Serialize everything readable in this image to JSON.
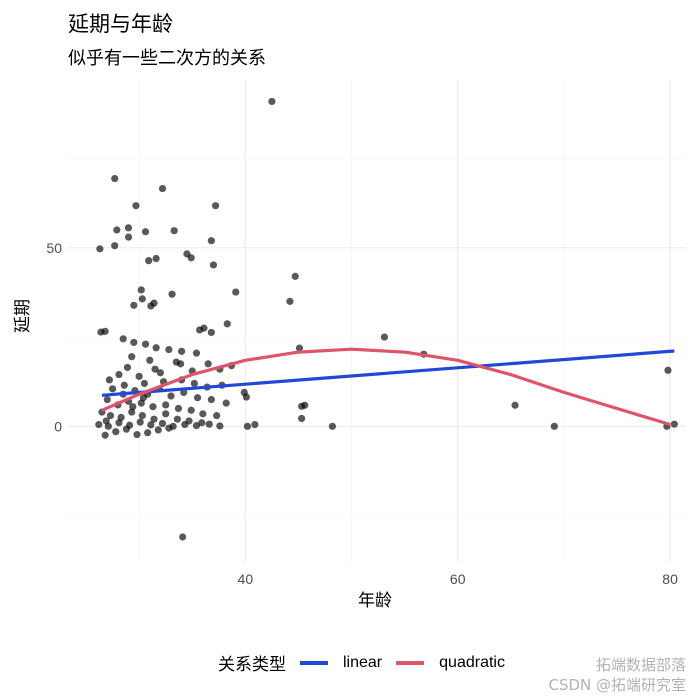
{
  "title": "延期与年龄",
  "subtitle": "似乎有一些二次方的关系",
  "watermark": [
    "拓端数据部落",
    "CSDN @拓端研究室"
  ],
  "chart_data": {
    "type": "scatter",
    "xlabel": "年龄",
    "ylabel": "延期",
    "xlim": [
      23.3,
      81.5
    ],
    "ylim": [
      -38,
      97
    ],
    "xticks": [
      40,
      60,
      80
    ],
    "yticks": [
      0,
      50
    ],
    "grid": true,
    "legend": {
      "title": "关系类型",
      "placement": "bottom"
    },
    "points": [
      [
        42.5,
        91
      ],
      [
        27.7,
        69.4
      ],
      [
        32.2,
        66.6
      ],
      [
        37.2,
        61.8
      ],
      [
        29.7,
        61.8
      ],
      [
        29,
        55.6
      ],
      [
        27.9,
        55
      ],
      [
        29,
        53
      ],
      [
        30.6,
        54.5
      ],
      [
        33.3,
        54.8
      ],
      [
        26.3,
        49.7
      ],
      [
        27.7,
        50.6
      ],
      [
        36.8,
        52
      ],
      [
        34.5,
        48.3
      ],
      [
        34.9,
        47.2
      ],
      [
        37,
        45.2
      ],
      [
        30.9,
        46.4
      ],
      [
        31.6,
        47
      ],
      [
        44.7,
        42
      ],
      [
        44.2,
        35
      ],
      [
        39.1,
        37.6
      ],
      [
        30.2,
        38.2
      ],
      [
        30.3,
        35.7
      ],
      [
        33.1,
        37
      ],
      [
        31.1,
        33.7
      ],
      [
        31.4,
        34.5
      ],
      [
        29.5,
        33.9
      ],
      [
        38.3,
        28.7
      ],
      [
        35.7,
        27
      ],
      [
        36.1,
        27.5
      ],
      [
        36.8,
        26.3
      ],
      [
        26.4,
        26.4
      ],
      [
        26.8,
        26.6
      ],
      [
        45.1,
        21.9
      ],
      [
        53.1,
        25
      ],
      [
        56.8,
        20.2
      ],
      [
        79.8,
        15.7
      ],
      [
        65.4,
        5.9
      ],
      [
        69.1,
        0
      ],
      [
        79.7,
        0
      ],
      [
        80.4,
        0.6
      ],
      [
        48.2,
        0
      ],
      [
        45.3,
        5.6
      ],
      [
        45.6,
        5.9
      ],
      [
        45.3,
        2.2
      ],
      [
        40.2,
        0
      ],
      [
        40.9,
        0.5
      ],
      [
        39.9,
        9.5
      ],
      [
        40.1,
        8.2
      ],
      [
        34.1,
        -31
      ],
      [
        28.5,
        24.5
      ],
      [
        29.5,
        23.5
      ],
      [
        30.6,
        23
      ],
      [
        31.6,
        22
      ],
      [
        32.8,
        21.5
      ],
      [
        34,
        21
      ],
      [
        35.4,
        20.5
      ],
      [
        36.5,
        17.5
      ],
      [
        37.6,
        16
      ],
      [
        38.7,
        17
      ],
      [
        33.9,
        17.5
      ],
      [
        31,
        18.5
      ],
      [
        29.3,
        19.5
      ],
      [
        28.1,
        14.5
      ],
      [
        30,
        14
      ],
      [
        32,
        15
      ],
      [
        34,
        13
      ],
      [
        35.2,
        12
      ],
      [
        36.4,
        11
      ],
      [
        37.8,
        11.5
      ],
      [
        27.5,
        10.5
      ],
      [
        28.5,
        9
      ],
      [
        29.6,
        10
      ],
      [
        30.8,
        9
      ],
      [
        31.9,
        10.5
      ],
      [
        33,
        8.5
      ],
      [
        34.2,
        9.5
      ],
      [
        35.5,
        8
      ],
      [
        36.8,
        7.5
      ],
      [
        38.2,
        6.5
      ],
      [
        27,
        7.5
      ],
      [
        28,
        6
      ],
      [
        29,
        7
      ],
      [
        30.2,
        6.5
      ],
      [
        31.3,
        5.5
      ],
      [
        32.5,
        6
      ],
      [
        33.7,
        5
      ],
      [
        34.9,
        4.5
      ],
      [
        36,
        3.5
      ],
      [
        37.3,
        3
      ],
      [
        26.5,
        4
      ],
      [
        27.3,
        3
      ],
      [
        28.3,
        2.5
      ],
      [
        29.3,
        4
      ],
      [
        30.3,
        3
      ],
      [
        31.4,
        2
      ],
      [
        32.5,
        3.5
      ],
      [
        33.6,
        2
      ],
      [
        34.7,
        1.5
      ],
      [
        35.9,
        1
      ],
      [
        26.2,
        0.5
      ],
      [
        27.1,
        0
      ],
      [
        28.1,
        1
      ],
      [
        29.1,
        0.3
      ],
      [
        30.1,
        1.2
      ],
      [
        31.1,
        0.4
      ],
      [
        32.2,
        0.8
      ],
      [
        33.2,
        0
      ],
      [
        34.3,
        0.5
      ],
      [
        35.4,
        0.2
      ],
      [
        36.6,
        0.6
      ],
      [
        37.6,
        0.1
      ],
      [
        27.8,
        -1.5
      ],
      [
        29.8,
        -2.3
      ],
      [
        31.8,
        -1
      ],
      [
        26.8,
        -2.5
      ],
      [
        28.8,
        -0.8
      ],
      [
        30.8,
        -1.8
      ],
      [
        32.8,
        -0.5
      ],
      [
        29.4,
        5.5
      ],
      [
        28.6,
        11.5
      ],
      [
        30.5,
        12
      ],
      [
        32.3,
        12.5
      ],
      [
        27.2,
        13
      ],
      [
        31.5,
        16
      ],
      [
        33.5,
        18
      ],
      [
        35,
        15.5
      ],
      [
        28.9,
        16.5
      ],
      [
        26.9,
        1.5
      ],
      [
        30.4,
        8
      ]
    ],
    "series": [
      {
        "name": "linear",
        "color": "#2148d6",
        "x": [
          26.5,
          80.4
        ],
        "y": [
          8.7,
          21.1
        ]
      },
      {
        "name": "quadratic",
        "color": "#df536b",
        "x": [
          26.5,
          30,
          35,
          40,
          45,
          50,
          55,
          60,
          65,
          70,
          75,
          80
        ],
        "y": [
          4.5,
          9,
          14.5,
          18.5,
          20.8,
          21.6,
          20.8,
          18.5,
          14.5,
          9.5,
          5,
          0.5
        ]
      }
    ]
  }
}
